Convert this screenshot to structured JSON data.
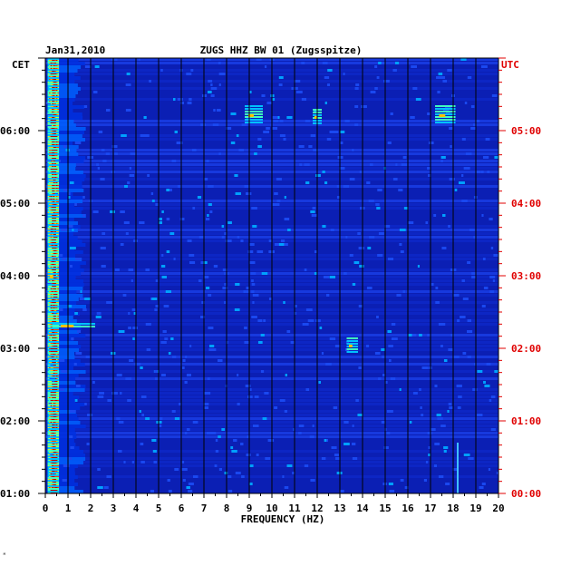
{
  "chart_data": {
    "type": "heatmap",
    "date_label": "Jan31,2010",
    "title": "ZUGS HHZ BW 01 (Zugsspitze)",
    "xlabel": "FREQUENCY (HZ)",
    "xlim": [
      0,
      20
    ],
    "x_ticks": [
      "0",
      "1",
      "2",
      "3",
      "4",
      "5",
      "6",
      "7",
      "8",
      "9",
      "10",
      "11",
      "12",
      "13",
      "14",
      "15",
      "16",
      "17",
      "18",
      "19",
      "20"
    ],
    "left_axis": {
      "timezone": "CET",
      "ticks": [
        "06:00",
        "05:00",
        "04:00",
        "03:00",
        "02:00",
        "01:00"
      ],
      "color": "#000000"
    },
    "right_axis": {
      "timezone": "UTC",
      "ticks": [
        "05:00",
        "04:00",
        "03:00",
        "02:00",
        "01:00",
        "00:00"
      ],
      "color": "#e00000"
    },
    "time_range_cet_hours": [
      1.0,
      7.0
    ],
    "colormap": [
      "#0000a0",
      "#0020c8",
      "#0060ff",
      "#00c0ff",
      "#40ffc0",
      "#c0ff40",
      "#ffc000",
      "#ff4000",
      "#c00000"
    ],
    "background_color": "#0b1fb4",
    "dominant_band_hz": [
      0.1,
      0.6
    ],
    "features": [
      {
        "note": "strong microseism energy band",
        "freq_hz": [
          0.1,
          0.6
        ],
        "time_cet_hours": [
          1.0,
          7.0
        ]
      },
      {
        "note": "narrowband event",
        "freq_hz": [
          8.8,
          9.6
        ],
        "time_cet_hours": [
          6.1,
          6.35
        ]
      },
      {
        "note": "narrowband event",
        "freq_hz": [
          11.8,
          12.2
        ],
        "time_cet_hours": [
          6.1,
          6.3
        ]
      },
      {
        "note": "narrowband event",
        "freq_hz": [
          17.2,
          18.1
        ],
        "time_cet_hours": [
          6.1,
          6.35
        ]
      },
      {
        "note": "continuous line",
        "freq_hz": [
          18.2,
          18.2
        ],
        "time_cet_hours": [
          1.0,
          1.7
        ]
      },
      {
        "note": "short burst",
        "freq_hz": [
          13.3,
          13.8
        ],
        "time_cet_hours": [
          2.95,
          3.15
        ]
      },
      {
        "note": "short burst",
        "freq_hz": [
          0.3,
          2.2
        ],
        "time_cet_hours": [
          3.3,
          3.35
        ]
      }
    ]
  }
}
